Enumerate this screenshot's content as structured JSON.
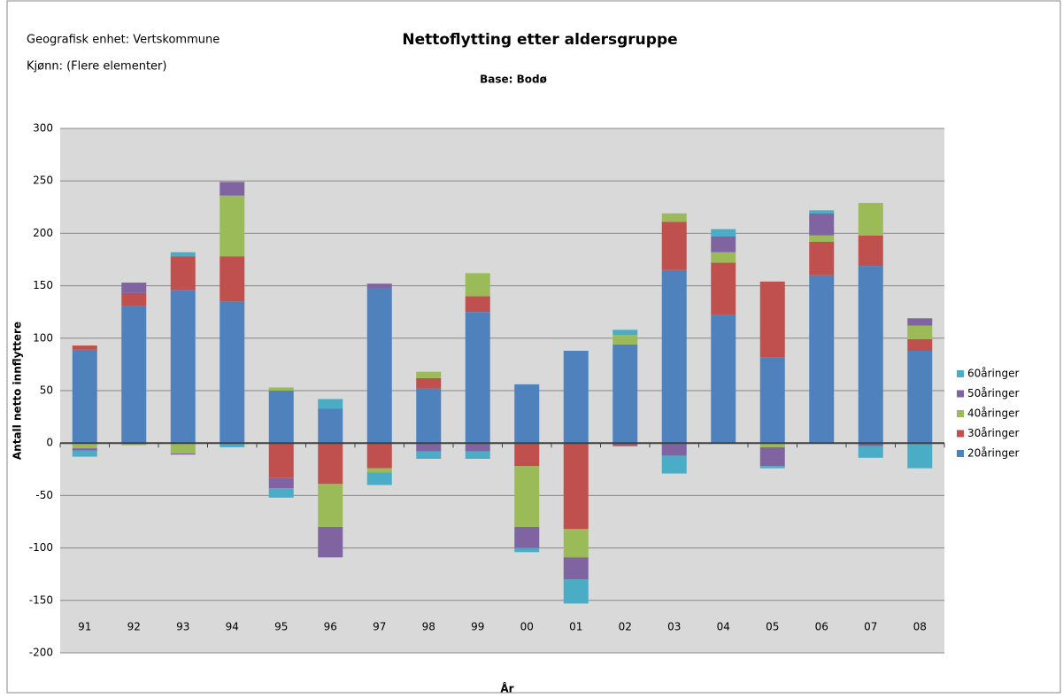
{
  "chart_data": {
    "type": "stacked_bar",
    "title": "Nettoflytting etter aldersgruppe",
    "subtitle": "Base: Bodø",
    "annotations": [
      "Geografisk enhet: Vertskommune",
      "Kjønn: (Flere elementer)"
    ],
    "x_label": "År",
    "y_label": "Antall netto innflyttere",
    "categories": [
      "91",
      "92",
      "93",
      "94",
      "95",
      "96",
      "97",
      "98",
      "99",
      "00",
      "01",
      "02",
      "03",
      "04",
      "05",
      "06",
      "07",
      "08"
    ],
    "series": [
      {
        "name": "20åringer",
        "color": "#4f81bd",
        "values": [
          89,
          131,
          146,
          135,
          50,
          33,
          148,
          52,
          125,
          56,
          88,
          94,
          165,
          122,
          82,
          160,
          169,
          88
        ]
      },
      {
        "name": "30åringer",
        "color": "#c0504d",
        "values": [
          4,
          12,
          32,
          43,
          -33,
          -39,
          -24,
          10,
          15,
          -22,
          -82,
          -2,
          46,
          50,
          72,
          32,
          29,
          11
        ]
      },
      {
        "name": "40åringer",
        "color": "#9bbb59",
        "values": [
          -5,
          -2,
          -10,
          58,
          3,
          -41,
          -4,
          6,
          22,
          -58,
          -27,
          9,
          8,
          10,
          -4,
          6,
          31,
          13
        ]
      },
      {
        "name": "50åringer",
        "color": "#8064a2",
        "values": [
          -2,
          10,
          -1,
          13,
          -10,
          -29,
          4,
          -8,
          -8,
          -20,
          -21,
          -1,
          -12,
          15,
          -18,
          21,
          -3,
          7
        ]
      },
      {
        "name": "60åringer",
        "color": "#4bacc6",
        "values": [
          -6,
          0,
          4,
          -4,
          -9,
          9,
          -12,
          -7,
          -7,
          -4,
          -23,
          5,
          -17,
          7,
          -2,
          3,
          -11,
          -24
        ]
      }
    ],
    "ylim": [
      -200,
      300
    ],
    "yticks": [
      -200,
      -150,
      -100,
      -50,
      0,
      50,
      100,
      150,
      200,
      250,
      300
    ],
    "grid": true,
    "legend": "right"
  }
}
